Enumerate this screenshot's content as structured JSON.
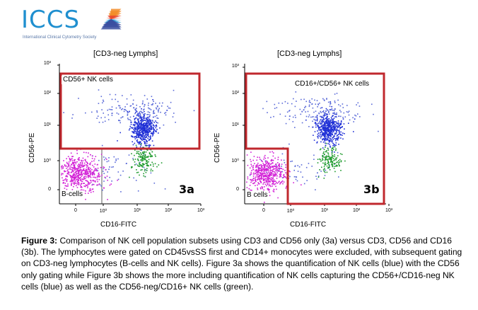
{
  "logo": {
    "text": "ICCS",
    "tagline": "International Clinical Cytometry Society",
    "mark_colors": [
      "#f28c28",
      "#e8442b",
      "#1f8fcf",
      "#3a4fa0"
    ]
  },
  "figure": {
    "panels": [
      {
        "id": "3a",
        "title": "[CD3-neg Lymphs]",
        "ylabel": "CD56-PE",
        "xlabel": "CD16-FITC",
        "y_ticks": [
          "10³",
          "10²",
          "10¹",
          "10⁰",
          "0"
        ],
        "x_ticks": [
          "0",
          "10⁰",
          "10¹",
          "10²",
          "10³"
        ],
        "gates": [
          "CD56+ NK cells",
          "B-cells"
        ],
        "panel_label": "3a"
      },
      {
        "id": "3b",
        "title": "[CD3-neg Lymphs]",
        "ylabel": "CD56-PE",
        "xlabel": "CD16-FITC",
        "y_ticks": [
          "10³",
          "10²",
          "10¹",
          "10⁰",
          "0"
        ],
        "x_ticks": [
          "0",
          "10⁰",
          "10¹",
          "10²",
          "10³"
        ],
        "gates": [
          "CD16+/CD56+ NK cells",
          "B cells"
        ],
        "panel_label": "3b"
      }
    ],
    "colors": {
      "gate": "#c0282e",
      "nk_blue": "#1f2fd6",
      "nk_green": "#1d9a2c",
      "bcells": "#d21ed6",
      "scatter_blue": "#5a6ad8"
    }
  },
  "caption": {
    "label": "Figure 3:",
    "text": " Comparison of NK cell population subsets using CD3 and CD56 only (3a) versus CD3, CD56 and CD16 (3b). The lymphocytes were gated on CD45vsSS first and CD14+ monocytes were excluded, with subsequent gating on CD3-neg lymphocytes (B-cells and NK cells). Figure 3a shows the quantification of NK cells (blue) with the CD56 only gating while Figure 3b shows the more including quantification of NK cells capturing the CD56+/CD16-neg NK cells (blue) as well as the CD56-neg/CD16+ NK cells (green)."
  }
}
